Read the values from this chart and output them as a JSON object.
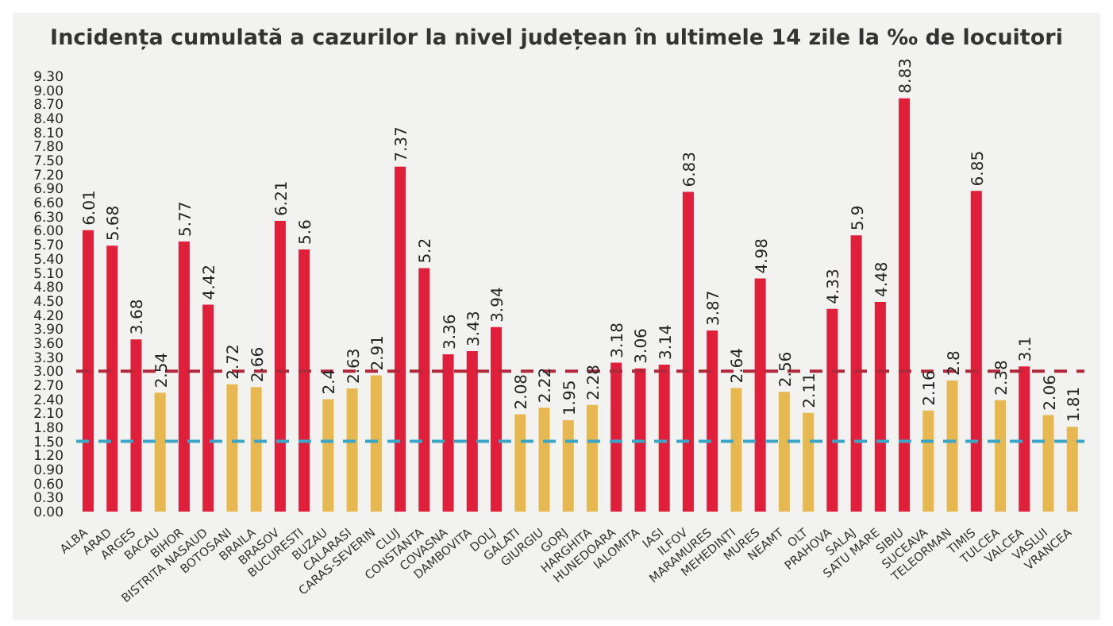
{
  "chart_data": {
    "type": "bar",
    "title": "Incidența cumulată a cazurilor la nivel județean în ultimele 14 zile la ‰ de locuitori",
    "categories": [
      "ALBA",
      "ARAD",
      "ARGES",
      "BACAU",
      "BIHOR",
      "BISTRITA NASAUD",
      "BOTOSANI",
      "BRAILA",
      "BRASOV",
      "BUCURESTI",
      "BUZAU",
      "CALARASI",
      "CARAS-SEVERIN",
      "CLUJ",
      "CONSTANTA",
      "COVASNA",
      "DAMBOVITA",
      "DOLJ",
      "GALATI",
      "GIURGIU",
      "GORJ",
      "HARGHITA",
      "HUNEDOARA",
      "IALOMITA",
      "IASI",
      "ILFOV",
      "MARAMURES",
      "MEHEDINTI",
      "MURES",
      "NEAMT",
      "OLT",
      "PRAHOVA",
      "SALAJ",
      "SATU MARE",
      "SIBIU",
      "SUCEAVA",
      "TELEORMAN",
      "TIMIS",
      "TULCEA",
      "VALCEA",
      "VASLUI",
      "VRANCEA"
    ],
    "values": [
      6.01,
      5.68,
      3.68,
      2.54,
      5.77,
      4.42,
      2.72,
      2.66,
      6.21,
      5.6,
      2.4,
      2.63,
      2.91,
      7.37,
      5.2,
      3.36,
      3.43,
      3.94,
      2.08,
      2.22,
      1.95,
      2.28,
      3.18,
      3.06,
      3.14,
      6.83,
      3.87,
      2.64,
      4.98,
      2.56,
      2.11,
      4.33,
      5.9,
      4.48,
      8.83,
      2.16,
      2.8,
      6.85,
      2.38,
      3.1,
      2.06,
      1.81
    ],
    "colors": [
      "#e0203a",
      "#e0203a",
      "#e0203a",
      "#e8b850",
      "#e0203a",
      "#e0203a",
      "#e8b850",
      "#e8b850",
      "#e0203a",
      "#e0203a",
      "#e8b850",
      "#e8b850",
      "#e8b850",
      "#e0203a",
      "#e0203a",
      "#e0203a",
      "#e0203a",
      "#e0203a",
      "#e8b850",
      "#e8b850",
      "#e8b850",
      "#e8b850",
      "#e0203a",
      "#e0203a",
      "#e0203a",
      "#e0203a",
      "#e0203a",
      "#e8b850",
      "#e0203a",
      "#e8b850",
      "#e8b850",
      "#e0203a",
      "#e0203a",
      "#e0203a",
      "#e0203a",
      "#e8b850",
      "#e8b850",
      "#e0203a",
      "#e8b850",
      "#e0203a",
      "#e8b850",
      "#e8b850"
    ],
    "data_labels": true,
    "ylim": [
      0,
      9.3
    ],
    "yticks": [
      {
        "value": 0,
        "label": "0.00"
      },
      {
        "value": 0.3,
        "label": "0.30"
      },
      {
        "value": 0.6,
        "label": "0.60"
      },
      {
        "value": 0.9,
        "label": "0.90"
      },
      {
        "value": 1.2,
        "label": "1.20"
      },
      {
        "value": 1.5,
        "label": "1.50"
      },
      {
        "value": 1.8,
        "label": "1.80"
      },
      {
        "value": 2.1,
        "label": "2.10"
      },
      {
        "value": 2.4,
        "label": "2.40"
      },
      {
        "value": 2.7,
        "label": "2.70"
      },
      {
        "value": 3,
        "label": "3.00"
      },
      {
        "value": 3.3,
        "label": "3.30"
      },
      {
        "value": 3.6,
        "label": "3.60"
      },
      {
        "value": 3.9,
        "label": "3.90"
      },
      {
        "value": 4.2,
        "label": "4.20"
      },
      {
        "value": 4.5,
        "label": "4.50"
      },
      {
        "value": 4.8,
        "label": "4.80"
      },
      {
        "value": 5.1,
        "label": "5.10"
      },
      {
        "value": 5.4,
        "label": "5.40"
      },
      {
        "value": 5.7,
        "label": "5.70"
      },
      {
        "value": 6,
        "label": "6.00"
      },
      {
        "value": 6.3,
        "label": "6.30"
      },
      {
        "value": 6.6,
        "label": "6.60"
      },
      {
        "value": 6.9,
        "label": "6.90"
      },
      {
        "value": 7.2,
        "label": "7.20"
      },
      {
        "value": 7.5,
        "label": "7.50"
      },
      {
        "value": 7.8,
        "label": "7.80"
      },
      {
        "value": 8.1,
        "label": "8.10"
      },
      {
        "value": 8.4,
        "label": "8.40"
      },
      {
        "value": 8.7,
        "label": "8.70"
      },
      {
        "value": 9,
        "label": "9.00"
      },
      {
        "value": 9.3,
        "label": "9.30"
      }
    ],
    "ref_lines": [
      {
        "axis": "y",
        "value": 3,
        "color": "#b0283a",
        "line_style": "dashed"
      },
      {
        "axis": "y",
        "value": 1.5,
        "color": "#3aa6c8",
        "line_style": "dashed"
      }
    ],
    "grid": false,
    "legend": false
  }
}
